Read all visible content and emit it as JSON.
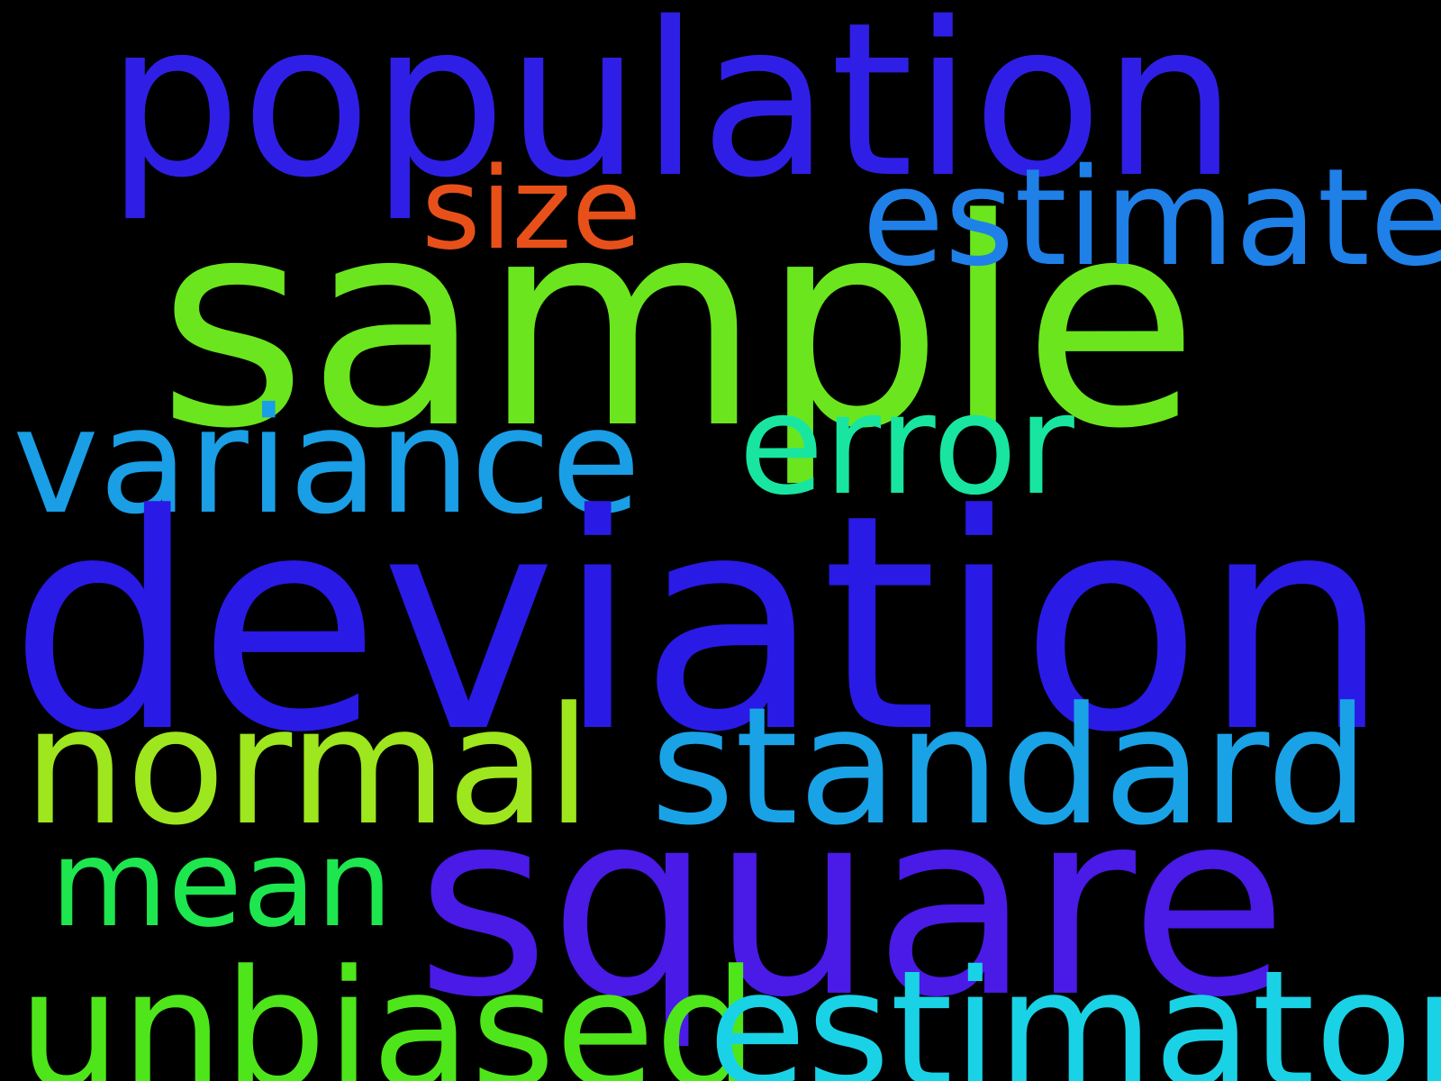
{
  "words": {
    "population": {
      "text": "population",
      "color": "#2f1fe6"
    },
    "sample": {
      "text": "sample",
      "color": "#6be61e"
    },
    "size": {
      "text": "size",
      "color": "#e8501a"
    },
    "estimate": {
      "text": "estimate",
      "color": "#1f80e8"
    },
    "variance": {
      "text": "variance",
      "color": "#1a9ee6"
    },
    "error": {
      "text": "error",
      "color": "#18e6a0"
    },
    "deviation": {
      "text": "deviation",
      "color": "#2a1ae6"
    },
    "normal": {
      "text": "normal",
      "color": "#9ee61e"
    },
    "standard": {
      "text": "standard",
      "color": "#1aa2e6"
    },
    "square": {
      "text": "square",
      "color": "#4a1ae6"
    },
    "mean": {
      "text": "mean",
      "color": "#1ee64e"
    },
    "unbiased": {
      "text": "unbiased",
      "color": "#4ee61a"
    },
    "estimator": {
      "text": "estimator",
      "color": "#1ad2e6"
    }
  }
}
